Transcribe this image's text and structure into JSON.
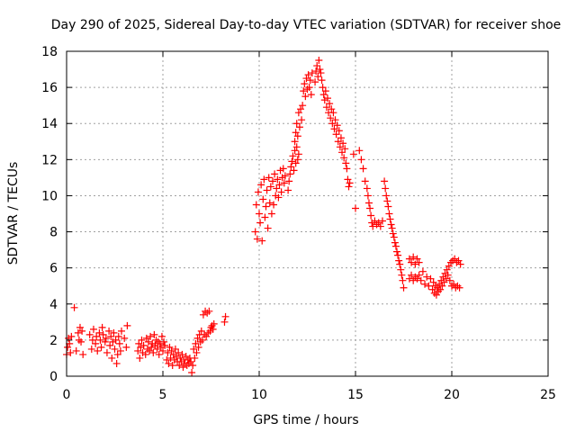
{
  "chart_data": {
    "type": "scatter",
    "title": "Day 290 of 2025, Sidereal Day-to-day VTEC variation (SDTVAR) for receiver shoe",
    "xlabel": "GPS time / hours",
    "ylabel": "SDTVAR / TECUs",
    "xlim": [
      0,
      25
    ],
    "ylim": [
      0,
      18
    ],
    "xticks": [
      0,
      5,
      10,
      15,
      20,
      25
    ],
    "yticks": [
      0,
      2,
      4,
      6,
      8,
      10,
      12,
      14,
      16,
      18
    ],
    "xtick_labels": [
      "0",
      "5",
      "10",
      "15",
      "20",
      "25"
    ],
    "ytick_labels": [
      "0",
      "2",
      "4",
      "6",
      "8",
      "10",
      "12",
      "14",
      "16",
      "18"
    ],
    "grid": true,
    "color": "#ff0000",
    "marker": "plus",
    "series": [
      {
        "name": "SDTVAR",
        "points": [
          [
            0.0,
            1.2
          ],
          [
            0.05,
            1.6
          ],
          [
            0.1,
            2.1
          ],
          [
            0.15,
            1.8
          ],
          [
            0.2,
            1.3
          ],
          [
            0.25,
            2.2
          ],
          [
            0.4,
            3.8
          ],
          [
            0.5,
            1.4
          ],
          [
            0.6,
            2.4
          ],
          [
            0.65,
            2.0
          ],
          [
            0.7,
            2.7
          ],
          [
            0.75,
            1.9
          ],
          [
            0.8,
            2.5
          ],
          [
            0.85,
            1.2
          ],
          [
            1.2,
            2.3
          ],
          [
            1.3,
            1.5
          ],
          [
            1.35,
            2.0
          ],
          [
            1.4,
            2.6
          ],
          [
            1.5,
            1.8
          ],
          [
            1.55,
            2.2
          ],
          [
            1.6,
            1.4
          ],
          [
            1.7,
            2.4
          ],
          [
            1.75,
            2.0
          ],
          [
            1.8,
            1.6
          ],
          [
            1.85,
            2.7
          ],
          [
            1.9,
            2.3
          ],
          [
            2.0,
            1.9
          ],
          [
            2.05,
            2.1
          ],
          [
            2.1,
            1.3
          ],
          [
            2.2,
            2.5
          ],
          [
            2.25,
            1.7
          ],
          [
            2.3,
            2.2
          ],
          [
            2.35,
            1.0
          ],
          [
            2.4,
            1.9
          ],
          [
            2.45,
            2.4
          ],
          [
            2.5,
            1.5
          ],
          [
            2.55,
            2.0
          ],
          [
            2.6,
            0.7
          ],
          [
            2.65,
            1.2
          ],
          [
            2.7,
            2.2
          ],
          [
            2.75,
            1.8
          ],
          [
            2.8,
            1.4
          ],
          [
            2.85,
            2.5
          ],
          [
            3.0,
            2.1
          ],
          [
            3.1,
            1.6
          ],
          [
            3.15,
            2.8
          ],
          [
            3.7,
            1.4
          ],
          [
            3.75,
            1.8
          ],
          [
            3.8,
            1.0
          ],
          [
            3.85,
            1.6
          ],
          [
            3.9,
            2.0
          ],
          [
            3.95,
            1.3
          ],
          [
            4.0,
            1.7
          ],
          [
            4.1,
            1.2
          ],
          [
            4.15,
            2.1
          ],
          [
            4.2,
            1.5
          ],
          [
            4.25,
            1.9
          ],
          [
            4.3,
            1.4
          ],
          [
            4.35,
            2.2
          ],
          [
            4.4,
            1.6
          ],
          [
            4.45,
            1.8
          ],
          [
            4.5,
            1.3
          ],
          [
            4.55,
            2.3
          ],
          [
            4.6,
            1.7
          ],
          [
            4.65,
            2.0
          ],
          [
            4.7,
            1.5
          ],
          [
            4.75,
            1.9
          ],
          [
            4.8,
            1.2
          ],
          [
            4.85,
            1.8
          ],
          [
            4.9,
            1.6
          ],
          [
            4.95,
            2.2
          ],
          [
            5.0,
            1.4
          ],
          [
            5.05,
            1.9
          ],
          [
            5.1,
            1.7
          ],
          [
            5.2,
            0.9
          ],
          [
            5.25,
            1.3
          ],
          [
            5.3,
            0.7
          ],
          [
            5.35,
            1.6
          ],
          [
            5.4,
            1.0
          ],
          [
            5.45,
            1.4
          ],
          [
            5.5,
            0.6
          ],
          [
            5.55,
            1.2
          ],
          [
            5.6,
            0.9
          ],
          [
            5.65,
            1.5
          ],
          [
            5.7,
            1.1
          ],
          [
            5.75,
            0.8
          ],
          [
            5.8,
            1.3
          ],
          [
            5.85,
            0.6
          ],
          [
            5.9,
            1.0
          ],
          [
            5.95,
            0.8
          ],
          [
            6.0,
            1.2
          ],
          [
            6.05,
            0.5
          ],
          [
            6.1,
            0.9
          ],
          [
            6.15,
            0.7
          ],
          [
            6.2,
            1.1
          ],
          [
            6.25,
            0.6
          ],
          [
            6.3,
            0.9
          ],
          [
            6.35,
            0.7
          ],
          [
            6.4,
            1.0
          ],
          [
            6.45,
            0.8
          ],
          [
            6.5,
            0.2
          ],
          [
            6.55,
            0.6
          ],
          [
            6.6,
            1.5
          ],
          [
            6.65,
            1.0
          ],
          [
            6.7,
            1.8
          ],
          [
            6.75,
            1.3
          ],
          [
            6.8,
            2.1
          ],
          [
            6.85,
            1.6
          ],
          [
            6.9,
            2.3
          ],
          [
            6.95,
            1.9
          ],
          [
            7.0,
            2.5
          ],
          [
            7.05,
            2.0
          ],
          [
            7.1,
            3.4
          ],
          [
            7.15,
            2.3
          ],
          [
            7.2,
            3.6
          ],
          [
            7.25,
            2.2
          ],
          [
            7.3,
            3.5
          ],
          [
            7.35,
            2.4
          ],
          [
            7.4,
            3.6
          ],
          [
            7.45,
            2.5
          ],
          [
            7.5,
            2.7
          ],
          [
            7.55,
            2.8
          ],
          [
            7.6,
            2.6
          ],
          [
            7.65,
            2.9
          ],
          [
            8.2,
            3.0
          ],
          [
            8.25,
            3.3
          ],
          [
            9.8,
            8.0
          ],
          [
            9.85,
            9.5
          ],
          [
            9.9,
            7.6
          ],
          [
            9.95,
            10.2
          ],
          [
            10.0,
            9.0
          ],
          [
            10.05,
            8.5
          ],
          [
            10.1,
            10.6
          ],
          [
            10.15,
            7.5
          ],
          [
            10.2,
            9.8
          ],
          [
            10.25,
            10.9
          ],
          [
            10.3,
            8.8
          ],
          [
            10.35,
            9.4
          ],
          [
            10.4,
            10.3
          ],
          [
            10.45,
            8.2
          ],
          [
            10.5,
            11.0
          ],
          [
            10.55,
            9.6
          ],
          [
            10.6,
            10.5
          ],
          [
            10.65,
            9.0
          ],
          [
            10.7,
            10.8
          ],
          [
            10.75,
            9.5
          ],
          [
            10.8,
            11.2
          ],
          [
            10.85,
            10.0
          ],
          [
            10.9,
            10.4
          ],
          [
            10.95,
            10.9
          ],
          [
            11.0,
            9.9
          ],
          [
            11.05,
            10.6
          ],
          [
            11.1,
            11.4
          ],
          [
            11.15,
            10.2
          ],
          [
            11.2,
            11.0
          ],
          [
            11.25,
            11.5
          ],
          [
            11.3,
            10.7
          ],
          [
            11.35,
            11.1
          ],
          [
            11.5,
            10.3
          ],
          [
            11.55,
            10.8
          ],
          [
            11.6,
            11.2
          ],
          [
            11.65,
            11.6
          ],
          [
            11.7,
            11.9
          ],
          [
            11.75,
            12.2
          ],
          [
            11.8,
            11.4
          ],
          [
            11.85,
            12.5
          ],
          [
            11.9,
            11.8
          ],
          [
            11.95,
            12.7
          ],
          [
            12.0,
            12.0
          ],
          [
            12.05,
            12.3
          ],
          [
            11.85,
            13.0
          ],
          [
            11.9,
            13.5
          ],
          [
            11.95,
            14.0
          ],
          [
            12.0,
            13.3
          ],
          [
            12.05,
            14.6
          ],
          [
            12.1,
            13.8
          ],
          [
            12.15,
            14.8
          ],
          [
            12.2,
            14.2
          ],
          [
            12.25,
            15.0
          ],
          [
            12.3,
            15.8
          ],
          [
            12.35,
            16.2
          ],
          [
            12.4,
            15.5
          ],
          [
            12.45,
            16.5
          ],
          [
            12.5,
            15.9
          ],
          [
            12.55,
            16.7
          ],
          [
            12.6,
            16.0
          ],
          [
            12.65,
            16.4
          ],
          [
            12.7,
            15.6
          ],
          [
            12.75,
            16.8
          ],
          [
            12.9,
            16.3
          ],
          [
            12.95,
            16.9
          ],
          [
            13.0,
            17.2
          ],
          [
            13.05,
            16.6
          ],
          [
            13.1,
            17.5
          ],
          [
            13.15,
            17.0
          ],
          [
            13.2,
            16.8
          ],
          [
            13.25,
            16.4
          ],
          [
            13.3,
            16.0
          ],
          [
            13.35,
            15.6
          ],
          [
            13.4,
            15.3
          ],
          [
            13.45,
            15.8
          ],
          [
            13.5,
            14.9
          ],
          [
            13.55,
            15.4
          ],
          [
            13.6,
            14.6
          ],
          [
            13.65,
            15.1
          ],
          [
            13.7,
            14.3
          ],
          [
            13.75,
            14.8
          ],
          [
            13.8,
            14.0
          ],
          [
            13.85,
            14.6
          ],
          [
            13.9,
            13.7
          ],
          [
            13.95,
            14.2
          ],
          [
            14.0,
            13.4
          ],
          [
            14.05,
            13.9
          ],
          [
            14.1,
            13.0
          ],
          [
            14.15,
            13.6
          ],
          [
            14.2,
            12.7
          ],
          [
            14.25,
            13.2
          ],
          [
            14.3,
            12.4
          ],
          [
            14.35,
            12.9
          ],
          [
            14.4,
            12.1
          ],
          [
            14.45,
            12.6
          ],
          [
            14.5,
            11.8
          ],
          [
            14.55,
            11.5
          ],
          [
            14.6,
            10.9
          ],
          [
            14.65,
            10.5
          ],
          [
            14.7,
            10.7
          ],
          [
            14.9,
            12.3
          ],
          [
            15.0,
            9.3
          ],
          [
            15.2,
            12.5
          ],
          [
            15.3,
            12.0
          ],
          [
            15.4,
            11.5
          ],
          [
            15.5,
            10.8
          ],
          [
            15.6,
            10.4
          ],
          [
            15.65,
            10.0
          ],
          [
            15.7,
            9.6
          ],
          [
            15.75,
            9.3
          ],
          [
            15.8,
            8.9
          ],
          [
            15.85,
            8.5
          ],
          [
            15.9,
            8.3
          ],
          [
            16.0,
            8.6
          ],
          [
            16.1,
            8.4
          ],
          [
            16.2,
            8.5
          ],
          [
            16.3,
            8.3
          ],
          [
            16.4,
            8.6
          ],
          [
            16.5,
            10.8
          ],
          [
            16.55,
            10.4
          ],
          [
            16.6,
            10.0
          ],
          [
            16.65,
            9.7
          ],
          [
            16.7,
            9.4
          ],
          [
            16.75,
            9.0
          ],
          [
            16.8,
            8.7
          ],
          [
            16.85,
            8.4
          ],
          [
            16.9,
            8.2
          ],
          [
            16.95,
            7.9
          ],
          [
            17.0,
            7.7
          ],
          [
            17.05,
            7.4
          ],
          [
            17.1,
            7.2
          ],
          [
            17.15,
            6.9
          ],
          [
            17.2,
            6.7
          ],
          [
            17.25,
            6.4
          ],
          [
            17.3,
            6.2
          ],
          [
            17.35,
            5.9
          ],
          [
            17.4,
            5.6
          ],
          [
            17.45,
            5.3
          ],
          [
            17.5,
            4.9
          ],
          [
            17.8,
            6.5
          ],
          [
            17.9,
            6.3
          ],
          [
            18.0,
            6.6
          ],
          [
            18.1,
            6.2
          ],
          [
            18.2,
            6.5
          ],
          [
            18.3,
            6.3
          ],
          [
            17.8,
            5.4
          ],
          [
            17.9,
            5.6
          ],
          [
            18.0,
            5.3
          ],
          [
            18.1,
            5.5
          ],
          [
            18.2,
            5.4
          ],
          [
            18.3,
            5.6
          ],
          [
            18.4,
            5.3
          ],
          [
            18.5,
            5.8
          ],
          [
            18.6,
            5.1
          ],
          [
            18.7,
            5.5
          ],
          [
            18.8,
            5.0
          ],
          [
            18.9,
            5.4
          ],
          [
            19.0,
            4.8
          ],
          [
            19.05,
            5.2
          ],
          [
            19.1,
            4.6
          ],
          [
            19.15,
            5.0
          ],
          [
            19.2,
            4.5
          ],
          [
            19.25,
            4.9
          ],
          [
            19.3,
            4.7
          ],
          [
            19.35,
            5.1
          ],
          [
            19.4,
            4.8
          ],
          [
            19.45,
            5.3
          ],
          [
            19.5,
            5.0
          ],
          [
            19.55,
            5.5
          ],
          [
            19.6,
            5.2
          ],
          [
            19.65,
            5.7
          ],
          [
            19.7,
            5.4
          ],
          [
            19.75,
            5.9
          ],
          [
            19.8,
            5.6
          ],
          [
            19.85,
            6.1
          ],
          [
            19.9,
            5.3
          ],
          [
            19.95,
            6.3
          ],
          [
            20.0,
            5.0
          ],
          [
            20.05,
            6.4
          ],
          [
            20.1,
            5.1
          ],
          [
            20.15,
            6.5
          ],
          [
            20.2,
            4.9
          ],
          [
            20.25,
            6.3
          ],
          [
            20.3,
            5.0
          ],
          [
            20.35,
            6.4
          ],
          [
            20.4,
            4.9
          ],
          [
            20.45,
            6.2
          ]
        ]
      }
    ]
  }
}
